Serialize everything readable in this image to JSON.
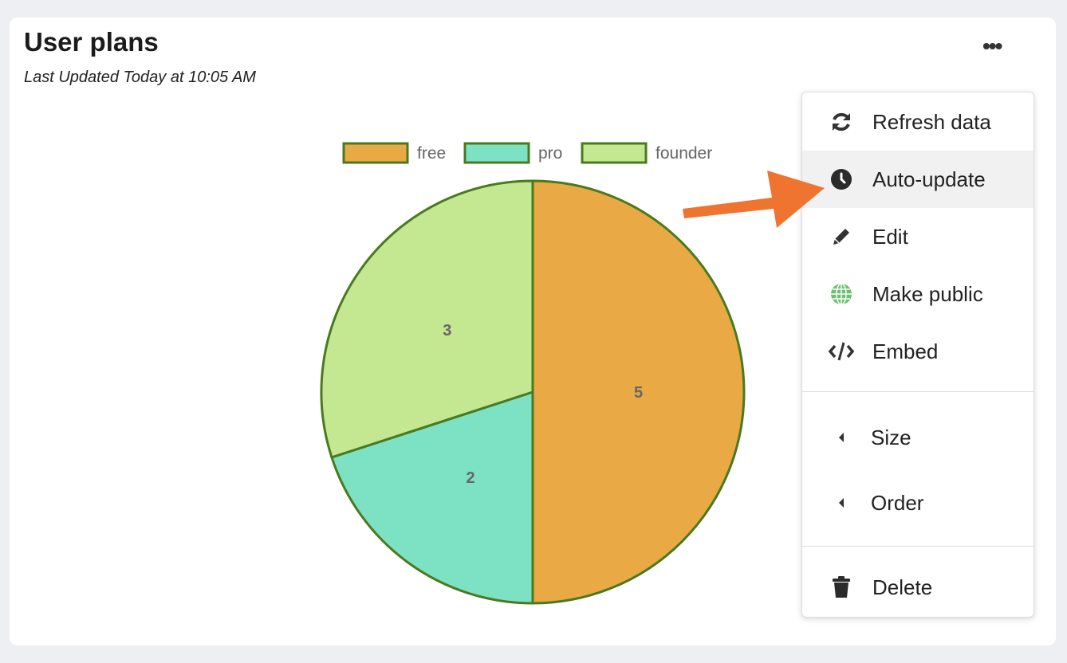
{
  "card": {
    "title": "User plans",
    "subtitle": "Last Updated Today at 10:05 AM",
    "more_icon": "ellipsis-icon"
  },
  "chart_data": {
    "type": "pie",
    "categories": [
      "free",
      "pro",
      "founder"
    ],
    "values": [
      5,
      2,
      3
    ],
    "colors": [
      "#e9a944",
      "#7de1c4",
      "#c3e891"
    ],
    "border_color": "#4a7a1e",
    "legend_position": "top",
    "data_labels": [
      "5",
      "2",
      "3"
    ]
  },
  "menu": {
    "items": [
      {
        "label": "Refresh data",
        "icon": "refresh-icon"
      },
      {
        "label": "Auto-update",
        "icon": "clock-icon",
        "highlighted": true
      },
      {
        "label": "Edit",
        "icon": "pencil-icon"
      },
      {
        "label": "Make public",
        "icon": "globe-icon"
      },
      {
        "label": "Embed",
        "icon": "code-icon"
      },
      {
        "label": "Size",
        "icon": "caret-left-icon"
      },
      {
        "label": "Order",
        "icon": "caret-left-icon"
      },
      {
        "label": "Delete",
        "icon": "trash-icon"
      }
    ]
  },
  "annotation": {
    "arrow_color": "#ee7430"
  }
}
